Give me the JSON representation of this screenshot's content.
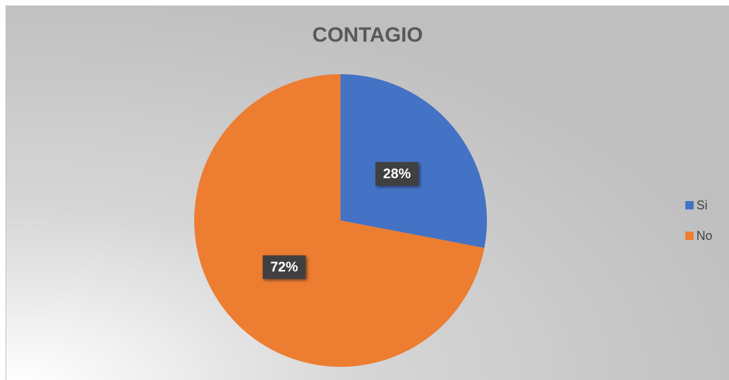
{
  "chart_data": {
    "type": "pie",
    "title": "CONTAGIO",
    "categories": [
      "Si",
      "No"
    ],
    "values": [
      28,
      72
    ],
    "value_labels": [
      "28%",
      "72%"
    ],
    "colors": [
      "#4472c4",
      "#ed7d31"
    ],
    "legend": "right"
  }
}
